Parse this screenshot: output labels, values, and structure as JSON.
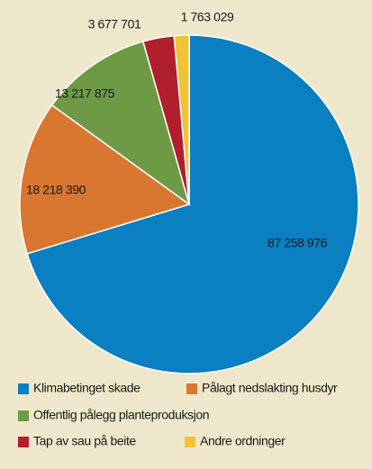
{
  "chart_data": {
    "type": "pie",
    "categories": [
      "Klimabetinget skade",
      "Pålagt nedslakting husdyr",
      "Offentlig pålegg planteproduksjon",
      "Tap av sau på beite",
      "Andre ordninger"
    ],
    "values": [
      87258976,
      18218390,
      13217875,
      3677701,
      1763029
    ],
    "value_labels": [
      "87 258 976",
      "18 218 390",
      "13 217 875",
      "3 677 701",
      "1 763 029"
    ],
    "colors": [
      "#0a7fc1",
      "#d9762f",
      "#6e9a45",
      "#b01f2b",
      "#f1c232"
    ]
  }
}
